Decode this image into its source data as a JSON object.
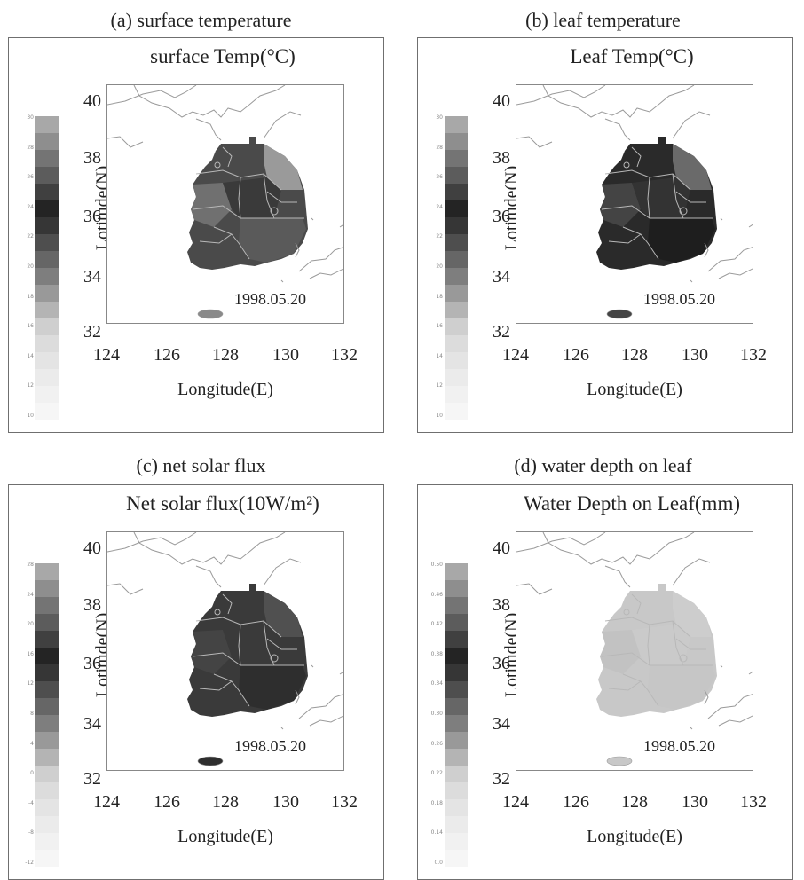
{
  "panels": [
    {
      "caption": "(a) surface temperature",
      "title": "surface Temp(°C)",
      "ylabel": "Lotitude(N)",
      "xlabel": "Longitude(E)",
      "date": "1998.05.20",
      "xticks": [
        "124",
        "126",
        "128",
        "130",
        "132"
      ],
      "yticks": [
        "40",
        "38",
        "36",
        "34",
        "32"
      ],
      "colorbar_ticks": [
        "30",
        "28",
        "26",
        "24",
        "22",
        "20",
        "18",
        "16",
        "14",
        "12",
        "10"
      ],
      "fill": "#4a4a4a",
      "region_fills": [
        "#5a5a5a",
        "#3a3a3a",
        "#707070",
        "#9a9a9a"
      ],
      "jeju_fill": "#8a8a8a"
    },
    {
      "caption": "(b) leaf temperature",
      "title": "Leaf Temp(°C)",
      "ylabel": "Lotitude(N)",
      "xlabel": "Longitude(E)",
      "date": "1998.05.20",
      "xticks": [
        "124",
        "126",
        "128",
        "130",
        "132"
      ],
      "yticks": [
        "40",
        "38",
        "36",
        "34",
        "32"
      ],
      "colorbar_ticks": [
        "30",
        "28",
        "26",
        "24",
        "22",
        "20",
        "18",
        "16",
        "14",
        "12",
        "10"
      ],
      "fill": "#2a2a2a",
      "region_fills": [
        "#1e1e1e",
        "#333333",
        "#444444",
        "#6a6a6a"
      ],
      "jeju_fill": "#444444"
    },
    {
      "caption": "(c) net solar flux",
      "title": "Net solar flux(10W/m²)",
      "ylabel": "Lotitude(N)",
      "xlabel": "Longitude(E)",
      "date": "1998.05.20",
      "xticks": [
        "124",
        "126",
        "128",
        "130",
        "132"
      ],
      "yticks": [
        "40",
        "38",
        "36",
        "34",
        "32"
      ],
      "colorbar_ticks": [
        "28",
        "24",
        "20",
        "16",
        "12",
        "8",
        "4",
        "0",
        "-4",
        "-8",
        "-12"
      ],
      "fill": "#3a3a3a",
      "region_fills": [
        "#2e2e2e",
        "#3a3a3a",
        "#444444",
        "#505050"
      ],
      "jeju_fill": "#2e2e2e"
    },
    {
      "caption": "(d) water depth on leaf",
      "title": "Water Depth on Leaf(mm)",
      "ylabel": "Lotitude(N)",
      "xlabel": "Longitude(E)",
      "date": "1998.05.20",
      "xticks": [
        "124",
        "126",
        "128",
        "130",
        "132"
      ],
      "yticks": [
        "40",
        "38",
        "36",
        "34",
        "32"
      ],
      "colorbar_ticks": [
        "0.50",
        "0.46",
        "0.42",
        "0.38",
        "0.34",
        "0.30",
        "0.26",
        "0.22",
        "0.18",
        "0.14",
        "0.0"
      ],
      "fill": "#c8c8c8",
      "region_fills": [
        "#c6c6c6",
        "#cacaca",
        "#c2c2c2",
        "#cdcdcd"
      ],
      "jeju_fill": "#c8c8c8"
    }
  ],
  "colorbar_colors": [
    "#a8a8a8",
    "#8e8e8e",
    "#747474",
    "#5c5c5c",
    "#404040",
    "#242424",
    "#363636",
    "#4e4e4e",
    "#666666",
    "#7e7e7e",
    "#999999",
    "#b4b4b4",
    "#cfcfcf",
    "#dcdcdc",
    "#e4e4e4",
    "#ebebeb",
    "#f1f1f1",
    "#f6f6f6"
  ],
  "coast_color": "#9a9a9a",
  "boundary_color": "#b8b8b8"
}
